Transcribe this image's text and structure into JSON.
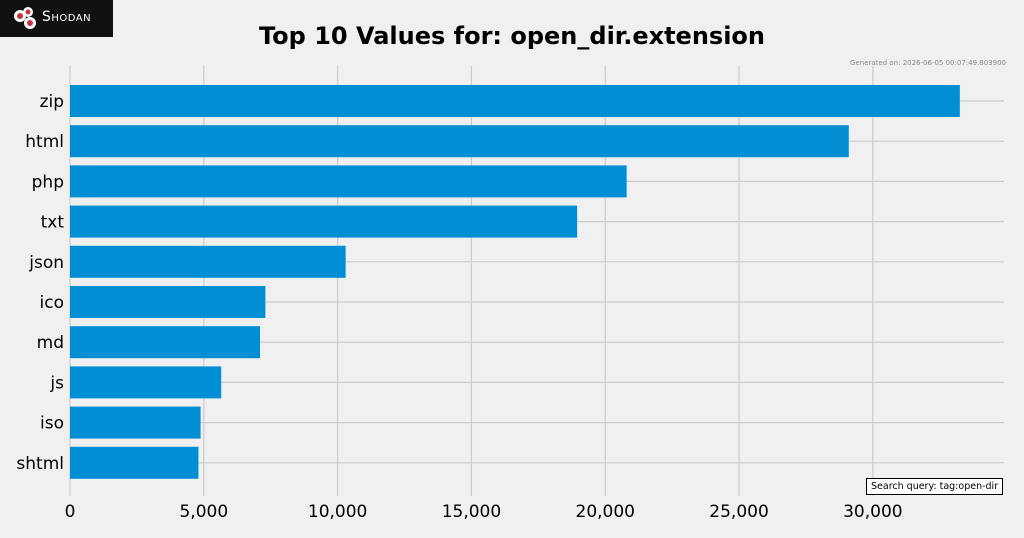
{
  "logo": {
    "text": "Shodan"
  },
  "header": {
    "title": "Top 10 Values for: open_dir.extension",
    "generated": "Generated on: 2026-06-05 00:07:49.803900"
  },
  "search_query": "Search query: tag:open-dir",
  "chart_data": {
    "type": "bar",
    "orientation": "horizontal",
    "title": "Top 10 Values for: open_dir.extension",
    "categories": [
      "zip",
      "html",
      "php",
      "txt",
      "json",
      "ico",
      "md",
      "js",
      "iso",
      "shtml"
    ],
    "values": [
      33250,
      29100,
      20800,
      18950,
      10300,
      7300,
      7100,
      5650,
      4880,
      4800
    ],
    "xticks": [
      0,
      5000,
      10000,
      15000,
      20000,
      25000,
      30000
    ],
    "xtick_labels": [
      "0",
      "5,000",
      "10,000",
      "15,000",
      "20,000",
      "25,000",
      "30,000"
    ],
    "xlim": [
      0,
      34900
    ],
    "xlabel": "",
    "ylabel": "",
    "grid": true,
    "bar_color": "#008fd5"
  }
}
